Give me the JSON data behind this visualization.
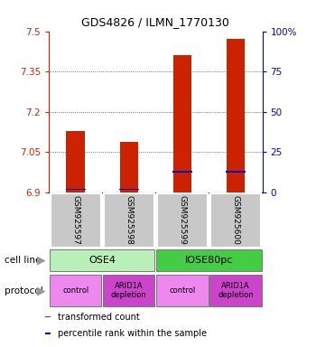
{
  "title": "GDS4826 / ILMN_1770130",
  "samples": [
    "GSM925597",
    "GSM925598",
    "GSM925599",
    "GSM925600"
  ],
  "transformed_counts": [
    7.13,
    7.09,
    7.41,
    7.47
  ],
  "percentile_ranks": [
    2,
    2,
    13,
    13
  ],
  "y_min": 6.9,
  "y_max": 7.5,
  "y_ticks": [
    6.9,
    7.05,
    7.2,
    7.35,
    7.5
  ],
  "y2_ticks": [
    0,
    25,
    50,
    75,
    100
  ],
  "y2_tick_labels": [
    "0",
    "25",
    "50",
    "75",
    "100%"
  ],
  "cell_lines": [
    {
      "label": "OSE4",
      "span": [
        0,
        2
      ],
      "color": "#b8f0b8"
    },
    {
      "label": "IOSE80pc",
      "span": [
        2,
        4
      ],
      "color": "#44cc44"
    }
  ],
  "protocols": [
    {
      "label": "control",
      "span": [
        0,
        1
      ],
      "color": "#ee88ee"
    },
    {
      "label": "ARID1A\ndepletion",
      "span": [
        1,
        2
      ],
      "color": "#cc44cc"
    },
    {
      "label": "control",
      "span": [
        2,
        3
      ],
      "color": "#ee88ee"
    },
    {
      "label": "ARID1A\ndepletion",
      "span": [
        3,
        4
      ],
      "color": "#cc44cc"
    }
  ],
  "bar_color": "#cc2200",
  "percentile_color": "#0000cc",
  "bar_width": 0.35,
  "percentile_bar_height": 0.006,
  "percentile_bar_width": 0.38,
  "legend_entries": [
    {
      "color": "#cc2200",
      "label": "transformed count"
    },
    {
      "color": "#0000cc",
      "label": "percentile rank within the sample"
    }
  ],
  "left_axis_color": "#cc2200",
  "right_axis_color": "#0000cc",
  "grid_color": "#444444",
  "sample_box_color": "#c8c8c8",
  "cell_line_label": "cell line",
  "protocol_label": "protocol",
  "arrow_color": "#999999"
}
